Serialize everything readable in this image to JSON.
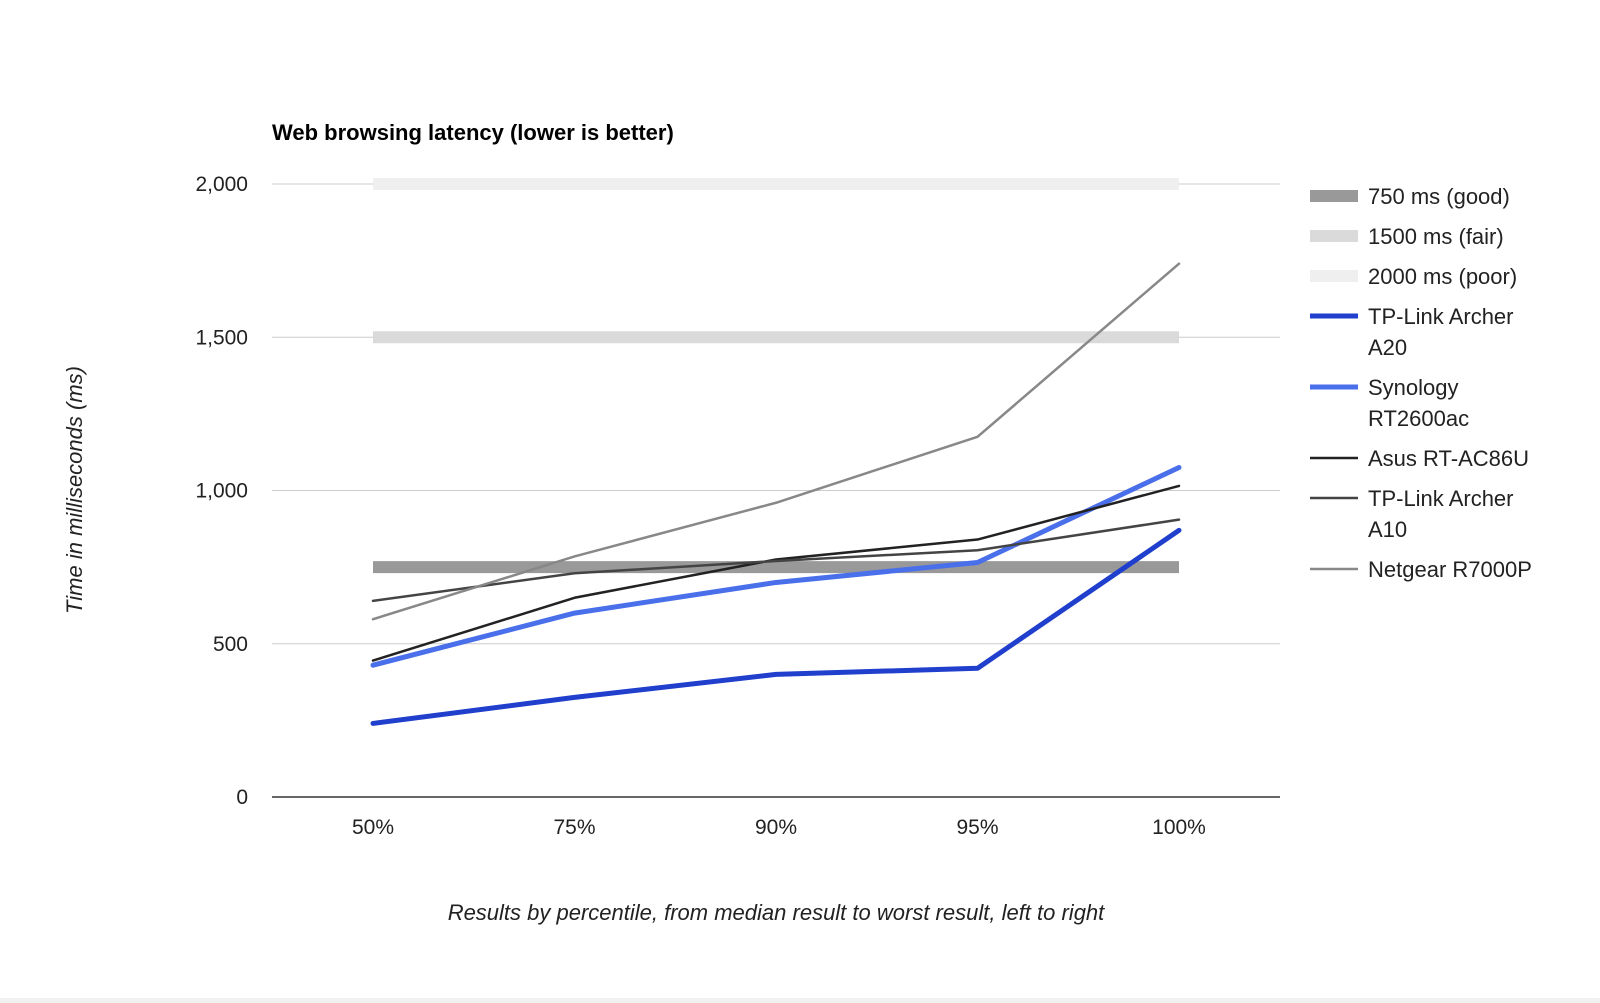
{
  "chart_data": {
    "type": "line",
    "title": "Web browsing latency (lower is better)",
    "xlabel": "Results by percentile, from median result to worst result, left to right",
    "ylabel": "Time in milliseconds (ms)",
    "categories": [
      "50%",
      "75%",
      "90%",
      "95%",
      "100%"
    ],
    "ylim": [
      0,
      2000
    ],
    "yticks": [
      0,
      500,
      1000,
      1500,
      2000
    ],
    "ytick_labels": [
      "0",
      "500",
      "1,000",
      "1,500",
      "2,000"
    ],
    "grid": true,
    "legend_position": "right",
    "series": [
      {
        "name": "750 ms (good)",
        "values": [
          750,
          750,
          750,
          750,
          750
        ],
        "color": "#999999",
        "style": "band"
      },
      {
        "name": "1500 ms (fair)",
        "values": [
          1500,
          1500,
          1500,
          1500,
          1500
        ],
        "color": "#dadada",
        "style": "band"
      },
      {
        "name": "2000 ms (poor)",
        "values": [
          2000,
          2000,
          2000,
          2000,
          2000
        ],
        "color": "#efefef",
        "style": "band"
      },
      {
        "name": "TP-Link Archer A20",
        "values": [
          240,
          325,
          400,
          420,
          870
        ],
        "color": "#1f3fcc",
        "style": "thick"
      },
      {
        "name": "Synology RT2600ac",
        "values": [
          430,
          600,
          700,
          765,
          1075
        ],
        "color": "#4a6fea",
        "style": "thick"
      },
      {
        "name": "Asus RT-AC86U",
        "values": [
          445,
          650,
          775,
          840,
          1015
        ],
        "color": "#222222",
        "style": "thin"
      },
      {
        "name": "TP-Link Archer A10",
        "values": [
          640,
          730,
          770,
          805,
          905
        ],
        "color": "#444444",
        "style": "thin"
      },
      {
        "name": "Netgear R7000P",
        "values": [
          580,
          785,
          960,
          1175,
          1740
        ],
        "color": "#888888",
        "style": "thin"
      }
    ]
  }
}
